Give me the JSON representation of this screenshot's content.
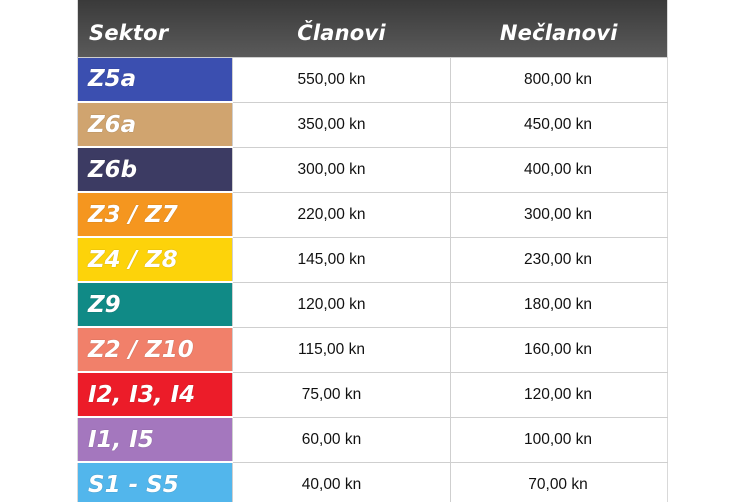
{
  "table": {
    "headers": {
      "sector": "Sektor",
      "members": "Članovi",
      "non_members": "Nečlanovi"
    },
    "rows": [
      {
        "sector": "Z5a",
        "color": "#3b4fb0",
        "members": "550,00 kn",
        "non_members": "800,00 kn"
      },
      {
        "sector": "Z6a",
        "color": "#d0a46f",
        "members": "350,00 kn",
        "non_members": "450,00 kn"
      },
      {
        "sector": "Z6b",
        "color": "#3c3b63",
        "members": "300,00 kn",
        "non_members": "400,00 kn"
      },
      {
        "sector": "Z3 / Z7",
        "color": "#f5961f",
        "members": "220,00 kn",
        "non_members": "300,00 kn"
      },
      {
        "sector": "Z4 / Z8",
        "color": "#fdd30a",
        "members": "145,00 kn",
        "non_members": "230,00 kn"
      },
      {
        "sector": "Z9",
        "color": "#108a86",
        "members": "120,00 kn",
        "non_members": "180,00 kn"
      },
      {
        "sector": "Z2 / Z10",
        "color": "#f1806a",
        "members": "115,00 kn",
        "non_members": "160,00 kn"
      },
      {
        "sector": "I2, I3, I4",
        "color": "#ec1c29",
        "members": "75,00 kn",
        "non_members": "120,00 kn"
      },
      {
        "sector": "I1, I5",
        "color": "#a477be",
        "members": "60,00 kn",
        "non_members": "100,00 kn"
      },
      {
        "sector": "S1 - S5",
        "color": "#52b6ec",
        "members": "40,00 kn",
        "non_members": "70,00 kn"
      }
    ]
  }
}
